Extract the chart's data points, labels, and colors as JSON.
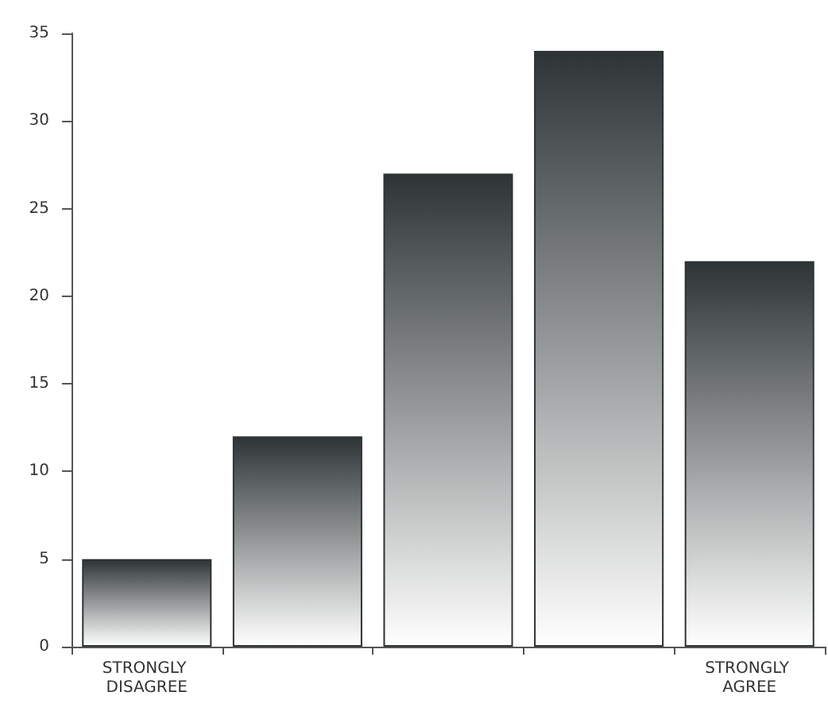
{
  "chart_data": {
    "type": "bar",
    "categories": [
      "STRONGLY DISAGREE",
      null,
      null,
      null,
      "STRONGLY AGREE"
    ],
    "values": [
      5,
      12,
      27,
      34,
      22
    ],
    "color": "#2e3436",
    "ylim": [
      0,
      35
    ],
    "yticks": [
      0,
      5,
      10,
      15,
      20,
      25,
      30,
      35
    ],
    "grid": false
  }
}
